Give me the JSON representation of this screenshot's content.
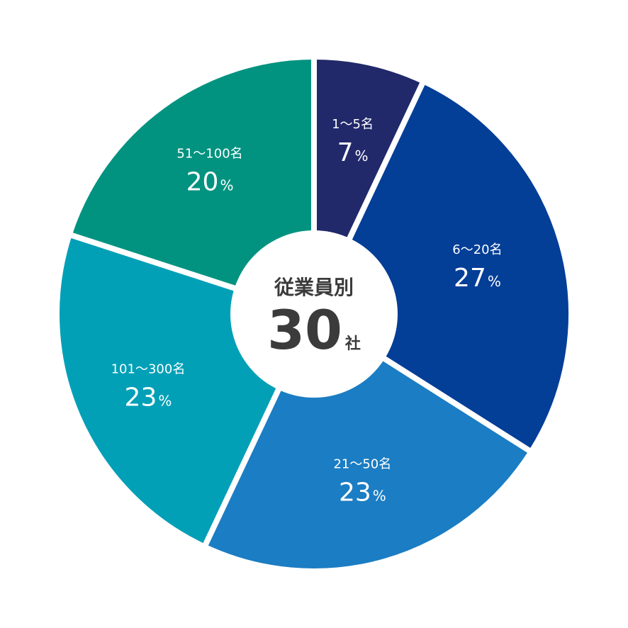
{
  "chart_data": {
    "type": "pie",
    "categories": [
      "1〜5名",
      "6〜20名",
      "21〜50名",
      "101〜300名",
      "51〜100名"
    ],
    "values": [
      7,
      27,
      23,
      23,
      20
    ],
    "value_suffix": "%",
    "colors": [
      "#21296a",
      "#033e97",
      "#1b7dc3",
      "#01a0b7",
      "#019380"
    ],
    "center": {
      "title": "従業員別",
      "value": "30",
      "unit": "社"
    }
  }
}
